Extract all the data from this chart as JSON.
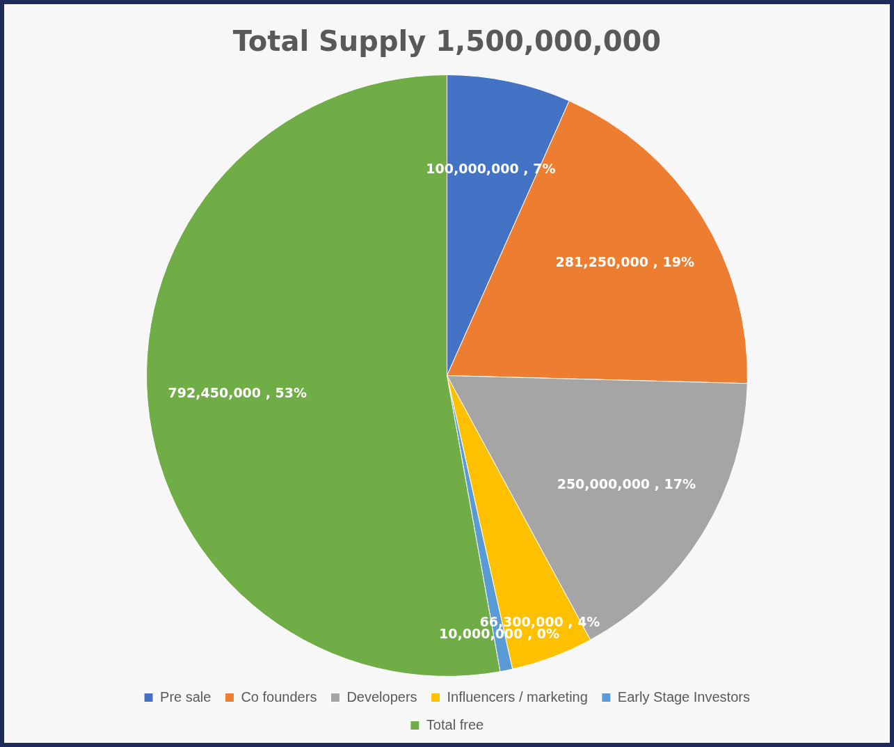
{
  "chart_data": {
    "type": "pie",
    "title": "Total Supply 1,500,000,000",
    "categories": [
      "Pre sale",
      "Co founders",
      "Developers",
      "Influencers / marketing",
      "Early Stage Investors",
      "Total free"
    ],
    "values": [
      100000000,
      281250000,
      250000000,
      66300000,
      10000000,
      792450000
    ],
    "colors": [
      "#4472c4",
      "#ed7d31",
      "#a5a5a5",
      "#ffc000",
      "#5b9bd5",
      "#70ad47"
    ],
    "value_labels": [
      "100,000,000 , 7%",
      "281,250,000 , 19%",
      "250,000,000 , 17%",
      "66,300,000 , 4%",
      "10,000,000 , 0%",
      "792,450,000 , 53%"
    ],
    "legend": "bottom"
  }
}
